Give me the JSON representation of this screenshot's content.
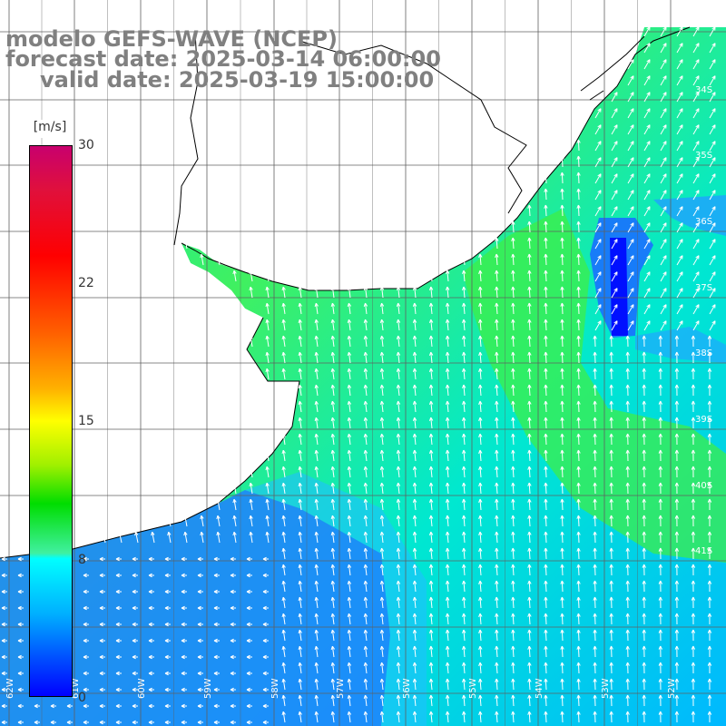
{
  "title": {
    "line1": "modelo GEFS-WAVE (NCEP)",
    "line2": "forecast date: 2025-03-14 06:00:00",
    "line3": "valid date: 2025-03-19 15:00:00"
  },
  "colorbar": {
    "unit": "[m/s]",
    "ticks": [
      "30",
      "22",
      "15",
      "8",
      "0"
    ],
    "tick_values": [
      30,
      22,
      15,
      8,
      0
    ],
    "range": [
      0,
      30
    ]
  },
  "map": {
    "grid_lines": true,
    "lon_labels": [
      "62W",
      "61W",
      "60W",
      "59W",
      "58W",
      "57W",
      "56W",
      "55W",
      "54W",
      "53W",
      "52W"
    ],
    "lat_labels": [
      "34S",
      "35S",
      "36S",
      "37S",
      "38S",
      "39S",
      "40S",
      "41S"
    ]
  },
  "colors": {
    "land": "#ffffff",
    "coast": "#000000",
    "grid": "#606060",
    "arrows": "#ffffff",
    "title": "#808080"
  }
}
